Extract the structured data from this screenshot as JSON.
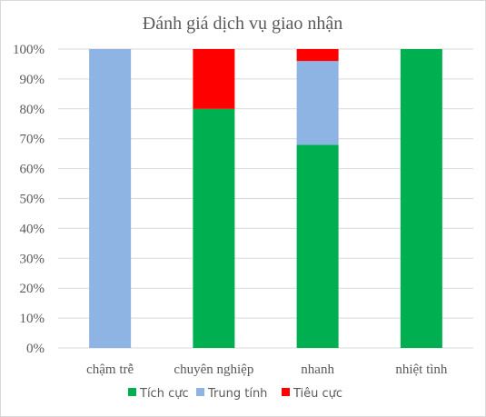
{
  "chart_data": {
    "type": "bar",
    "stacked": true,
    "percent": true,
    "title": "Đánh giá dịch vụ giao nhận",
    "categories": [
      "chậm trễ",
      "chuyên nghiệp",
      "nhanh",
      "nhiệt tình"
    ],
    "series": [
      {
        "name": "Tích cực",
        "color": "#00b050",
        "values": [
          0,
          80,
          68,
          100
        ]
      },
      {
        "name": "Trung tính",
        "color": "#8eb4e3",
        "values": [
          100,
          0,
          28,
          0
        ]
      },
      {
        "name": "Tiêu cực",
        "color": "#ff0000",
        "values": [
          0,
          20,
          4,
          0
        ]
      }
    ],
    "y_ticks": [
      "0%",
      "10%",
      "20%",
      "30%",
      "40%",
      "50%",
      "60%",
      "70%",
      "80%",
      "90%",
      "100%"
    ],
    "ylim": [
      0,
      100
    ],
    "grid": true,
    "legend_position": "bottom"
  }
}
